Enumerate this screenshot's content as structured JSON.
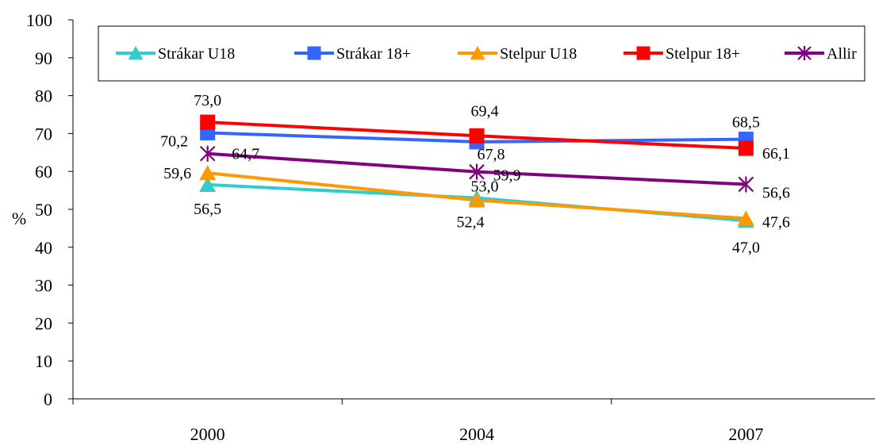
{
  "chart_data": {
    "type": "line",
    "title": "",
    "xlabel": "",
    "ylabel": "%",
    "categories": [
      "2000",
      "2004",
      "2007"
    ],
    "ylim": [
      0,
      100
    ],
    "yticks": [
      0,
      10,
      20,
      30,
      40,
      50,
      60,
      70,
      80,
      90,
      100
    ],
    "grid": false,
    "legend_position": "top",
    "series": [
      {
        "name": "Strákar U18",
        "values": [
          56.5,
          53.0,
          47.0
        ],
        "labels": [
          "56,5",
          "53,0",
          "47,0"
        ],
        "color": "#33CCCC",
        "marker": "triangle"
      },
      {
        "name": "Strákar 18+",
        "values": [
          70.2,
          67.8,
          68.5
        ],
        "labels": [
          "70,2",
          "67,8",
          "68,5"
        ],
        "color": "#3366FF",
        "marker": "square"
      },
      {
        "name": "Stelpur U18",
        "values": [
          59.6,
          52.4,
          47.6
        ],
        "labels": [
          "59,6",
          "52,4",
          "47,6"
        ],
        "color": "#FF9900",
        "marker": "triangle"
      },
      {
        "name": "Stelpur 18+",
        "values": [
          73.0,
          69.4,
          66.1
        ],
        "labels": [
          "73,0",
          "69,4",
          "66,1"
        ],
        "color": "#FF0000",
        "marker": "square"
      },
      {
        "name": "Allir",
        "values": [
          64.7,
          59.9,
          56.6
        ],
        "labels": [
          "64,7",
          "59,9",
          "56,6"
        ],
        "color": "#800080",
        "marker": "star"
      }
    ]
  }
}
